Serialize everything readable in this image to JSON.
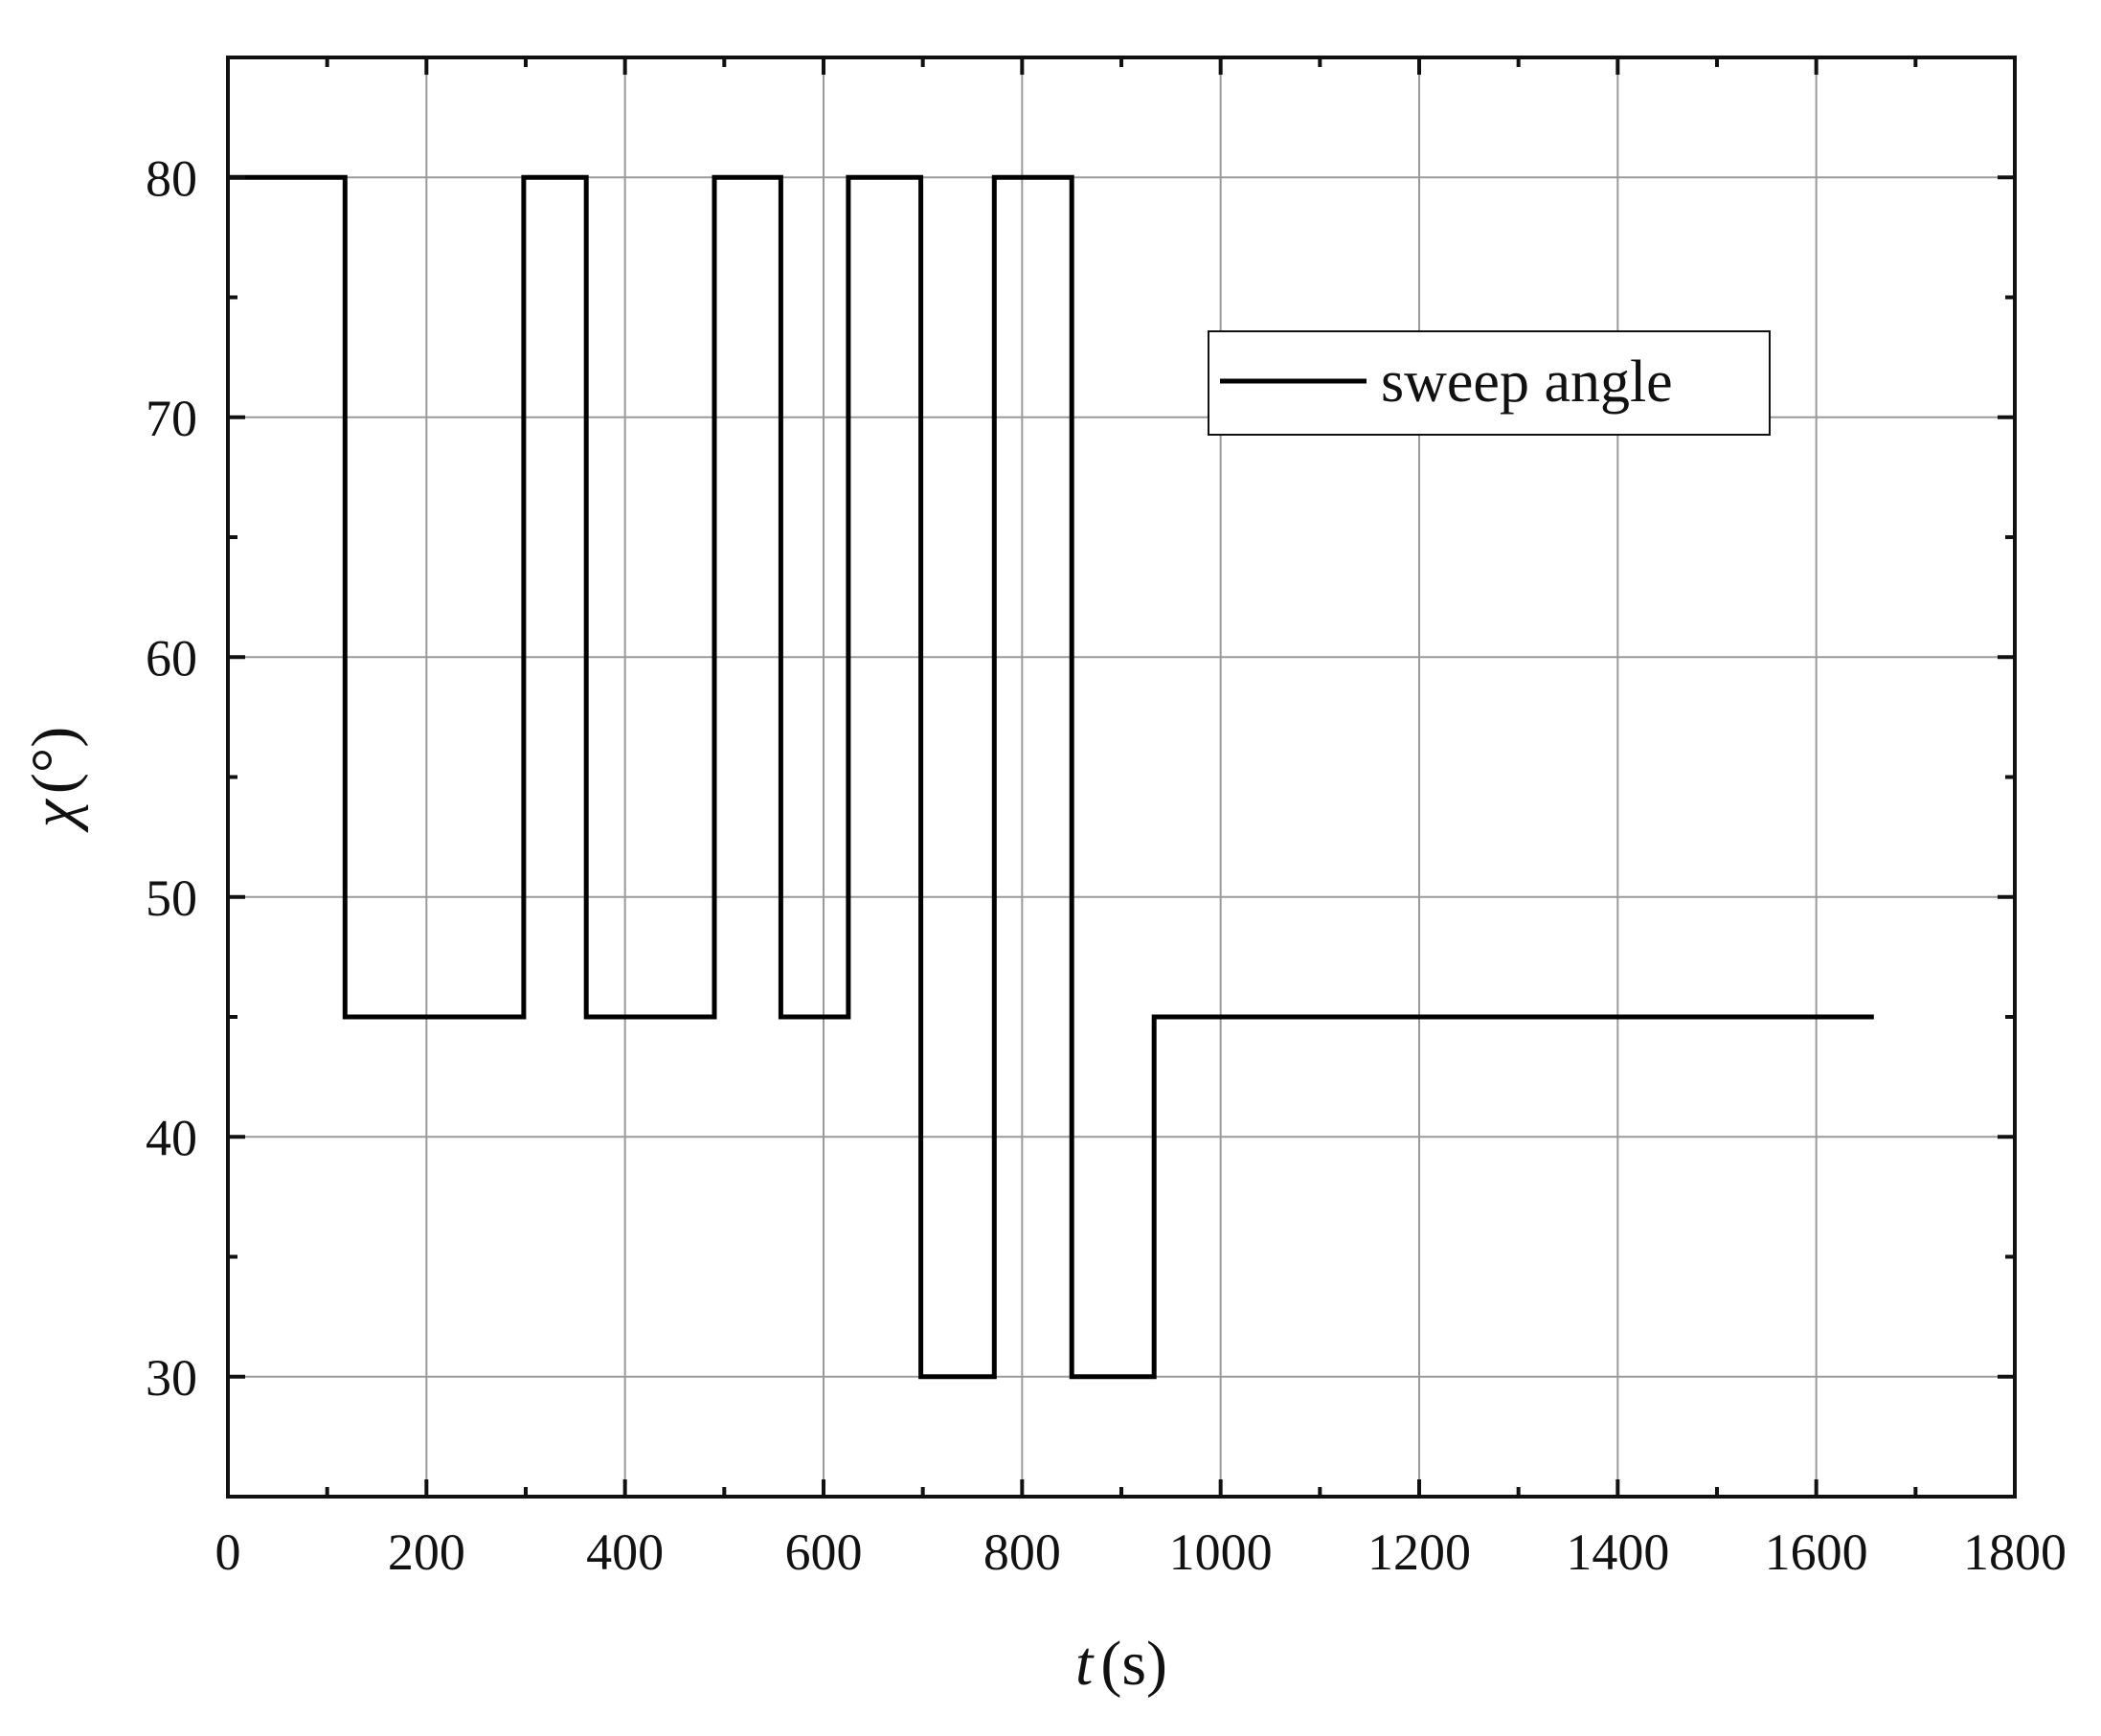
{
  "chart_data": {
    "type": "line",
    "xlabel_var": "t",
    "xlabel_unit": "(s)",
    "ylabel_var": "χ",
    "ylabel_unit": "(°)",
    "xlim": [
      0,
      1800
    ],
    "ylim": [
      25,
      85
    ],
    "x_ticks": [
      0,
      200,
      400,
      600,
      800,
      1000,
      1200,
      1400,
      1600,
      1800
    ],
    "y_ticks": [
      30,
      40,
      50,
      60,
      70,
      80
    ],
    "x_minor_step": 100,
    "y_minor_step": 5,
    "grid": true,
    "legend_position": "upper-right",
    "series": [
      {
        "name": "sweep angle",
        "color": "#000000",
        "step": true,
        "x": [
          0,
          118,
          118,
          298,
          298,
          361,
          361,
          490,
          490,
          557,
          557,
          625,
          625,
          698,
          698,
          772,
          772,
          850,
          850,
          933,
          933,
          1658
        ],
        "y": [
          80,
          80,
          45,
          45,
          80,
          80,
          45,
          45,
          80,
          80,
          45,
          45,
          80,
          80,
          30,
          30,
          80,
          80,
          30,
          30,
          45,
          45
        ]
      }
    ]
  }
}
